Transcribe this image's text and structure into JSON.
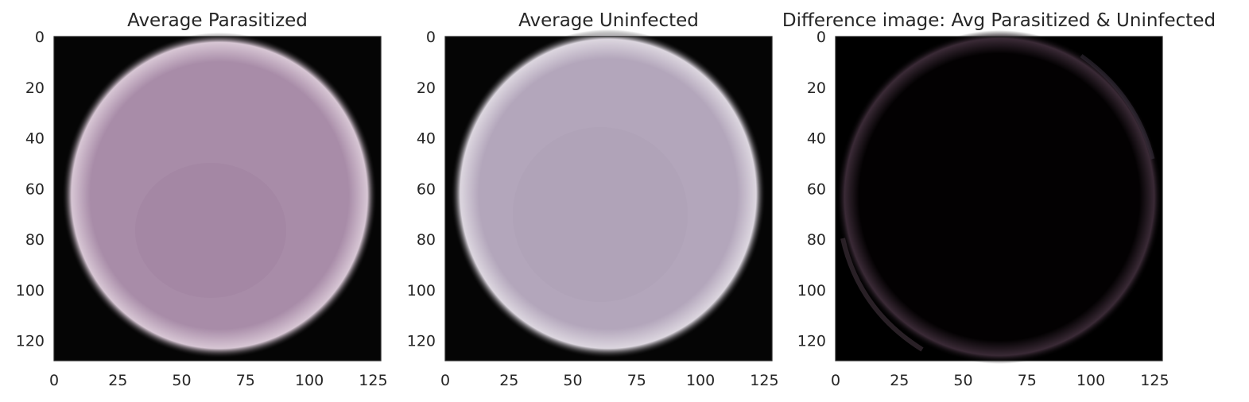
{
  "chart_data": [
    {
      "type": "heatmap",
      "title": "Average Parasitized",
      "xlabel": "",
      "ylabel": "",
      "xlim": [
        0,
        128
      ],
      "ylim": [
        128,
        0
      ],
      "x_ticks": [
        "0",
        "25",
        "50",
        "75",
        "100",
        "125"
      ],
      "y_ticks": [
        "0",
        "20",
        "40",
        "60",
        "80",
        "100",
        "120"
      ],
      "grid": false,
      "colors": {
        "background": "#050505",
        "cell": "#a88ca8",
        "cell_edge": "#d7c6d4",
        "cell_shade": "#9d7f9d"
      }
    },
    {
      "type": "heatmap",
      "title": "Average Uninfected",
      "xlabel": "",
      "ylabel": "",
      "xlim": [
        0,
        128
      ],
      "ylim": [
        128,
        0
      ],
      "x_ticks": [
        "0",
        "25",
        "50",
        "75",
        "100",
        "125"
      ],
      "y_ticks": [
        "0",
        "20",
        "40",
        "60",
        "80",
        "100",
        "120"
      ],
      "grid": false,
      "colors": {
        "background": "#050505",
        "cell": "#b3a6bb",
        "cell_edge": "#dcd6df",
        "cell_shade": "#aa9bb2"
      }
    },
    {
      "type": "heatmap",
      "title": "Difference image: Avg Parasitized & Uninfected",
      "xlabel": "",
      "ylabel": "",
      "xlim": [
        0,
        128
      ],
      "ylim": [
        128,
        0
      ],
      "x_ticks": [
        "0",
        "25",
        "50",
        "75",
        "100",
        "125"
      ],
      "y_ticks": [
        "0",
        "20",
        "40",
        "60",
        "80",
        "100",
        "120"
      ],
      "grid": false,
      "colors": {
        "background": "#000000",
        "cell": "#030102",
        "ring": "#3a2a36"
      }
    }
  ]
}
